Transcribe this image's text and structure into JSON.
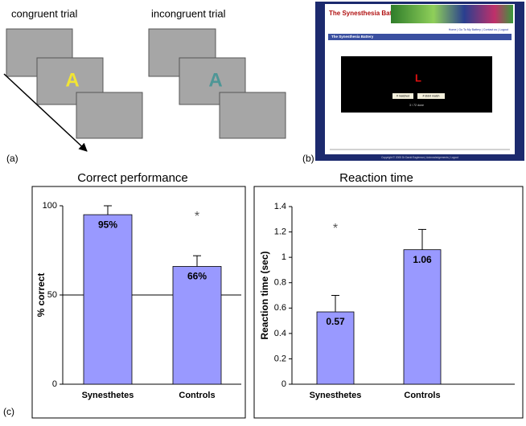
{
  "panel_labels": [
    "(a)",
    "(b)",
    "(c)"
  ],
  "trials": [
    {
      "label": "congruent trial",
      "letter": "A",
      "color": "#f2e533"
    },
    {
      "label": "incongruent trial",
      "letter": "A",
      "color": "#4e9696"
    }
  ],
  "screenshot": {
    "title": "The Synesthesia Battery",
    "nav": "Home | Go To My Battery | Contact us | Logout",
    "header": "The Synesthesia Battery",
    "letter": "L",
    "buttons": [
      "# matched",
      "# didnt match"
    ],
    "progress": "3 / 72 done",
    "footer": "Copyright © 2005 Dr David Eagleman | Acknowledgements | Logout"
  },
  "chart_data": [
    {
      "type": "bar",
      "title": "Correct performance",
      "y_label": "% correct",
      "categories": [
        "Synesthetes",
        "Controls"
      ],
      "series": [
        {
          "color": "#9999ff",
          "values": [
            95,
            66
          ],
          "value_labels": [
            "95%",
            "66%"
          ],
          "errors": [
            5,
            6
          ]
        }
      ],
      "ylim": [
        0,
        100
      ],
      "yticks": [
        0,
        50,
        100
      ],
      "hline": 50,
      "annotations": [
        {
          "text": "*",
          "category": 1
        }
      ]
    },
    {
      "type": "bar",
      "title": "Reaction time",
      "y_label": "Reaction time (sec)",
      "categories": [
        "Synesthetes",
        "Controls"
      ],
      "series": [
        {
          "color": "#9999ff",
          "values": [
            0.57,
            1.06
          ],
          "value_labels": [
            "0.57",
            "1.06"
          ],
          "errors": [
            0.13,
            0.16
          ]
        }
      ],
      "ylim": [
        0,
        1.4
      ],
      "yticks": [
        0,
        0.2,
        0.4,
        0.6,
        0.8,
        1,
        1.2,
        1.4
      ],
      "annotations": [
        {
          "text": "*",
          "category": 0
        }
      ]
    }
  ]
}
